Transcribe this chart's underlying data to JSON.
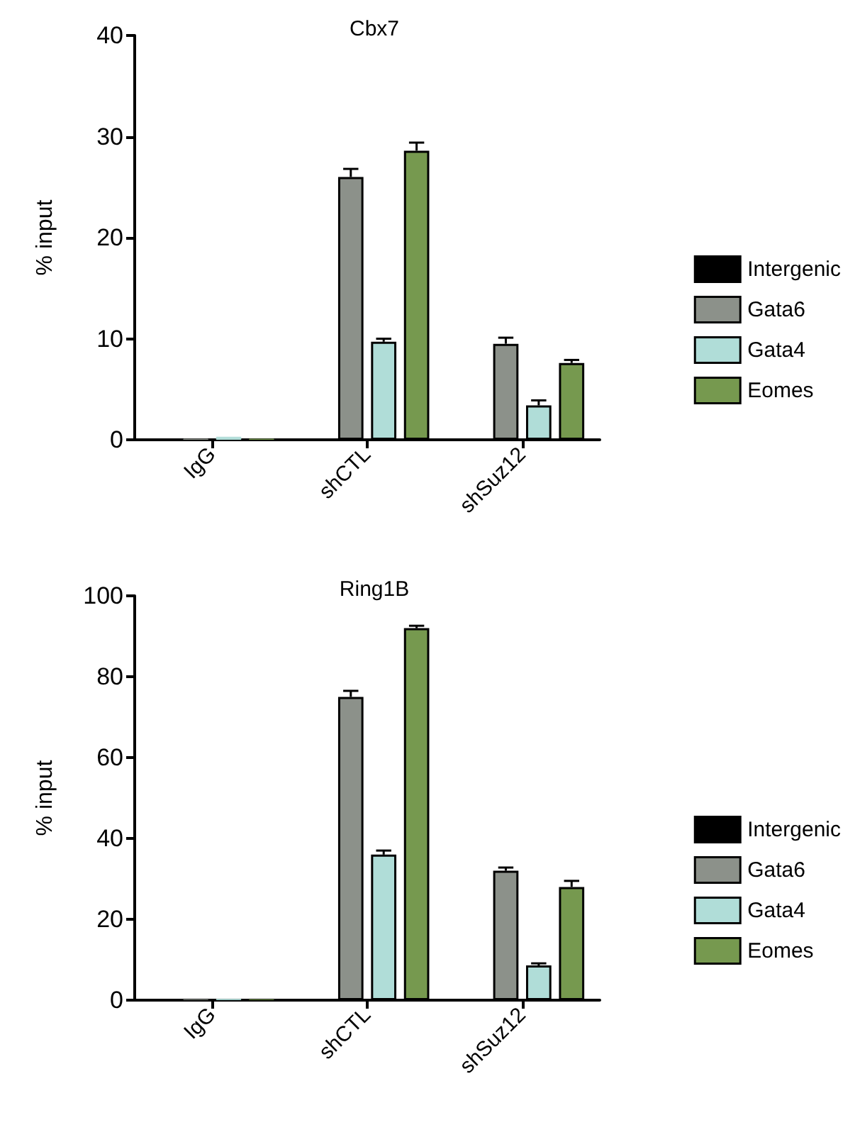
{
  "chart_data": [
    {
      "type": "bar",
      "title": "Cbx7",
      "ylabel": "% input",
      "categories": [
        "IgG",
        "shCTL",
        "shSuz12"
      ],
      "ylim": [
        0,
        40
      ],
      "yticks": [
        0,
        10,
        20,
        30,
        40
      ],
      "grid": false,
      "legend": "right",
      "series": [
        {
          "name": "Intergenic",
          "color": "#000000",
          "values": [
            0.1,
            0.1,
            0.1
          ],
          "errors": [
            null,
            null,
            null
          ]
        },
        {
          "name": "Gata6",
          "color": "#8c918a",
          "values": [
            0.1,
            26,
            9.5
          ],
          "errors": [
            null,
            [
              26,
              26.8
            ],
            [
              9.5,
              10.1
            ]
          ]
        },
        {
          "name": "Gata4",
          "color": "#b0ddd8",
          "values": [
            0.3,
            9.7,
            3.4
          ],
          "errors": [
            null,
            [
              9.7,
              10
            ],
            [
              3.4,
              3.9
            ]
          ]
        },
        {
          "name": "Eomes",
          "color": "#76994f",
          "values": [
            0.1,
            28.6,
            7.6
          ],
          "errors": [
            null,
            [
              28.6,
              29.4
            ],
            [
              7.6,
              7.9
            ]
          ]
        }
      ]
    },
    {
      "type": "bar",
      "title": "Ring1B",
      "ylabel": "% input",
      "categories": [
        "IgG",
        "shCTL",
        "shSuz12"
      ],
      "ylim": [
        0,
        100
      ],
      "yticks": [
        0,
        20,
        40,
        60,
        80,
        100
      ],
      "grid": false,
      "legend": "right",
      "series": [
        {
          "name": "Intergenic",
          "color": "#000000",
          "values": [
            0.2,
            0.2,
            0.2
          ],
          "errors": [
            null,
            null,
            null
          ]
        },
        {
          "name": "Gata6",
          "color": "#8c918a",
          "values": [
            0.2,
            75,
            32
          ],
          "errors": [
            null,
            [
              75,
              76.5
            ],
            [
              32,
              32.8
            ]
          ]
        },
        {
          "name": "Gata4",
          "color": "#b0ddd8",
          "values": [
            0.3,
            36,
            8.6
          ],
          "errors": [
            null,
            [
              36,
              37
            ],
            [
              8.6,
              9.1
            ]
          ]
        },
        {
          "name": "Eomes",
          "color": "#76994f",
          "values": [
            0.2,
            92,
            28
          ],
          "errors": [
            null,
            [
              92,
              92.6
            ],
            [
              28,
              29.5
            ]
          ]
        }
      ]
    }
  ]
}
